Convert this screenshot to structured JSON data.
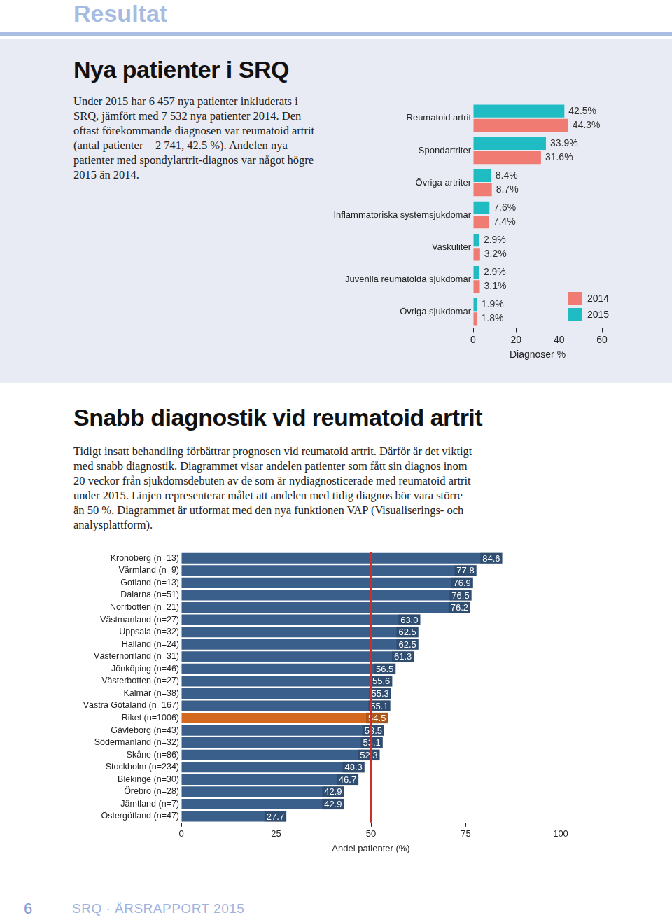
{
  "header": {
    "section": "Resultat"
  },
  "sections": [
    {
      "title": "Nya patienter i SRQ",
      "lines": [
        "Under 2015 har 6 457 nya patienter inkluderats i",
        "SRQ, jämfört med 7 532 nya patienter 2014. Den",
        "oftast förekommande diagnosen var reumatoid artrit",
        "(antal patienter = 2 741, 42.5 %). Andelen nya",
        "patienter med spondylartrit-diagnos var något högre",
        "2015 än 2014."
      ]
    },
    {
      "title": "Snabb diagnostik vid reumatoid artrit",
      "lines": [
        "Tidigt insatt behandling förbättrar prognosen vid reumatoid artrit. Därför är det viktigt",
        "med snabb diagnostik. Diagrammet visar andelen patienter som fått sin diagnos inom",
        "20 veckor från sjukdomsdebuten av de som är nydiagnosticerade med reumatoid artrit",
        "under 2015. Linjen representerar målet att andelen med tidig diagnos bör vara större",
        "än 50 %. Diagrammet är utformat med den nya funktionen VAP (Visualiserings- och",
        "analysplattform)."
      ]
    }
  ],
  "footer": {
    "page": "6",
    "publication": "SRQ · ÅRSRAPPORT 2015"
  },
  "chart_data": [
    {
      "type": "bar",
      "orientation": "horizontal",
      "categories": [
        "Reumatoid artrit",
        "Spondartriter",
        "Övriga artriter",
        "Inflammatoriska systemsjukdomar",
        "Vaskuliter",
        "Juvenila reumatoida sjukdomar",
        "Övriga sjukdomar"
      ],
      "series": [
        {
          "name": "2015",
          "color": "#1fbcc4",
          "values": [
            42.5,
            33.9,
            8.4,
            7.6,
            2.9,
            2.9,
            1.9
          ],
          "value_labels": [
            "42.5%",
            "33.9%",
            "8.4%",
            "7.6%",
            "2.9%",
            "2.9%",
            "1.9%"
          ]
        },
        {
          "name": "2014",
          "color": "#f07b72",
          "values": [
            44.3,
            31.6,
            8.7,
            7.4,
            3.2,
            3.1,
            1.8
          ],
          "value_labels": [
            "44.3%",
            "31.6%",
            "8.7%",
            "7.4%",
            "3.2%",
            "3.1%",
            "1.8%"
          ]
        }
      ],
      "xlim": [
        0,
        60
      ],
      "xticks": [
        0,
        20,
        40,
        60
      ],
      "x_label": "Diagnoser %",
      "grid": false,
      "data_labels": true,
      "legend": "lower right"
    },
    {
      "type": "bar",
      "orientation": "horizontal",
      "categories": [
        "Kronoberg (n=13)",
        "Värmland (n=9)",
        "Gotland (n=13)",
        "Dalarna (n=51)",
        "Norrbotten (n=21)",
        "Västmanland (n=27)",
        "Uppsala (n=32)",
        "Halland (n=24)",
        "Västernorrland (n=31)",
        "Jönköping (n=46)",
        "Västerbotten (n=27)",
        "Kalmar (n=38)",
        "Västra Götaland (n=167)",
        "Riket (n=1006)",
        "Gävleborg (n=43)",
        "Södermanland (n=32)",
        "Skåne (n=86)",
        "Stockholm (n=234)",
        "Blekinge (n=30)",
        "Örebro (n=28)",
        "Jämtland (n=7)",
        "Östergötland (n=47)"
      ],
      "values": [
        84.6,
        77.8,
        76.9,
        76.5,
        76.2,
        63.0,
        62.5,
        62.5,
        61.3,
        56.5,
        55.6,
        55.3,
        55.1,
        54.5,
        53.5,
        53.1,
        52.3,
        48.3,
        46.7,
        42.9,
        42.9,
        27.7
      ],
      "value_labels": [
        "84.6",
        "77.8",
        "76.9",
        "76.5",
        "76.2",
        "63.0",
        "62.5",
        "62.5",
        "61.3",
        "56.5",
        "55.6",
        "55.3",
        "55.1",
        "54.5",
        "53.5",
        "53.1",
        "52.3",
        "48.3",
        "46.7",
        "42.9",
        "42.9",
        "27.7"
      ],
      "colors": [
        "#3a5f8a",
        "#3a5f8a",
        "#3a5f8a",
        "#3a5f8a",
        "#3a5f8a",
        "#3a5f8a",
        "#3a5f8a",
        "#3a5f8a",
        "#3a5f8a",
        "#3a5f8a",
        "#3a5f8a",
        "#3a5f8a",
        "#3a5f8a",
        "#d2691e",
        "#3a5f8a",
        "#3a5f8a",
        "#3a5f8a",
        "#3a5f8a",
        "#3a5f8a",
        "#3a5f8a",
        "#3a5f8a",
        "#3a5f8a"
      ],
      "xlim": [
        0,
        100
      ],
      "xticks": [
        0,
        25,
        50,
        75,
        100
      ],
      "x_label": "Andel patienter (%)",
      "reference_line": 50,
      "grid": false,
      "data_labels": true
    }
  ]
}
